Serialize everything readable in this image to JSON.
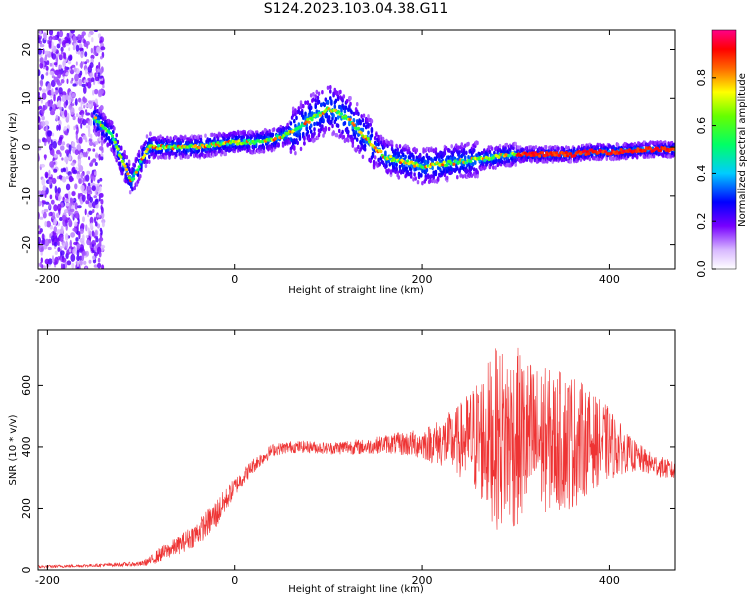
{
  "title": "S124.2023.103.04.38.G11",
  "chart_data": [
    {
      "type": "heatmap",
      "xlabel": "Height of straight line (km)",
      "ylabel": "Frequency (Hz)",
      "xlim": [
        -210,
        470
      ],
      "ylim": [
        -25,
        24
      ],
      "xticks": [
        -200,
        0,
        200,
        400
      ],
      "yticks": [
        -20,
        -10,
        0,
        10,
        20
      ],
      "ridge": {
        "x": [
          -150,
          -130,
          -120,
          -110,
          -105,
          -100,
          -95,
          -90,
          -80,
          -60,
          -40,
          -20,
          0,
          20,
          40,
          60,
          80,
          100,
          110,
          120,
          130,
          140,
          150,
          160,
          180,
          200,
          220,
          240,
          260,
          280,
          300,
          320,
          340,
          360,
          380,
          400,
          420,
          440,
          470
        ],
        "y": [
          6,
          2,
          -3,
          -7,
          -5,
          -3,
          -1,
          0,
          0,
          0,
          0,
          0.5,
          1,
          1,
          1.5,
          3,
          5.5,
          8,
          7,
          6,
          4,
          2,
          0,
          -2,
          -3,
          -4,
          -3.5,
          -3,
          -2.5,
          -2,
          -1.5,
          -1.5,
          -1.5,
          -1.5,
          -1,
          -1,
          -0.8,
          -0.5,
          -0.5
        ]
      },
      "colorbar": {
        "label": "Normalized spectral amplitude",
        "range": [
          0,
          1
        ],
        "ticks": [
          "0.0",
          "0.2",
          "0.4",
          "0.6",
          "0.8"
        ]
      }
    },
    {
      "type": "line",
      "xlabel": "Height of straight line (km)",
      "ylabel": "SNR (10 * v/v)",
      "xlim": [
        -210,
        470
      ],
      "ylim": [
        0,
        780
      ],
      "xticks": [
        -200,
        0,
        200,
        400
      ],
      "yticks": [
        0,
        200,
        400,
        600
      ],
      "color": "#ee3333",
      "envelope": {
        "x": [
          -210,
          -150,
          -100,
          -90,
          -80,
          -60,
          -40,
          -20,
          0,
          20,
          40,
          60,
          80,
          100,
          120,
          140,
          160,
          180,
          200,
          220,
          240,
          260,
          280,
          300,
          320,
          340,
          360,
          380,
          400,
          420,
          440,
          470
        ],
        "mean": [
          10,
          15,
          20,
          30,
          50,
          80,
          120,
          180,
          270,
          340,
          390,
          400,
          400,
          395,
          400,
          400,
          410,
          410,
          410,
          415,
          420,
          430,
          430,
          430,
          425,
          420,
          420,
          420,
          410,
          380,
          350,
          320
        ],
        "amplitude": [
          5,
          5,
          8,
          15,
          25,
          30,
          40,
          50,
          30,
          25,
          20,
          20,
          20,
          20,
          25,
          25,
          30,
          40,
          50,
          80,
          120,
          200,
          300,
          300,
          250,
          230,
          230,
          160,
          120,
          60,
          40,
          30
        ]
      }
    }
  ]
}
